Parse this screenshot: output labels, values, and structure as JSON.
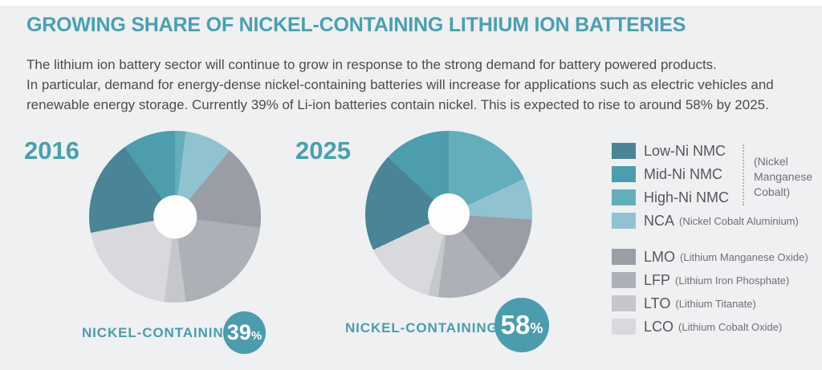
{
  "header": {
    "title": "GROWING SHARE OF NICKEL-CONTAINING LITHIUM ION BATTERIES",
    "intro": "The lithium ion battery sector will continue to grow in response to the strong demand for battery powered products.\nIn particular, demand for energy-dense nickel-containing batteries will increase for applications such as electric vehicles and\nrenewable energy storage. Currently 39% of Li-ion batteries contain nickel. This is expected to rise to around 58% by 2025."
  },
  "colors": {
    "accent": "#4aa0b0",
    "badge": "#4b9cac",
    "background": "#eff0f1",
    "hole": "#fdfdfd",
    "low_ni": "#4a8496",
    "mid_ni": "#4e9dac",
    "high_ni": "#64aebb",
    "nca": "#90c3cf",
    "lmo": "#9b9da6",
    "lfp": "#aeb0b7",
    "lto": "#c6c7cb",
    "lco": "#d8d9dc"
  },
  "chart_data": [
    {
      "type": "pie",
      "title": "2016",
      "donut": true,
      "hole_ratio": 0.25,
      "clockwise_from_top": true,
      "segments": [
        {
          "label": "High-Ni NMC",
          "value": 2,
          "color_key": "high_ni"
        },
        {
          "label": "NCA",
          "value": 9,
          "color_key": "nca"
        },
        {
          "label": "LMO",
          "value": 16,
          "color_key": "lmo"
        },
        {
          "label": "LFP",
          "value": 21,
          "color_key": "lfp"
        },
        {
          "label": "LTO",
          "value": 4,
          "color_key": "lto"
        },
        {
          "label": "LCO",
          "value": 20,
          "color_key": "lco"
        },
        {
          "label": "Low-Ni NMC",
          "value": 18,
          "color_key": "low_ni"
        },
        {
          "label": "Mid-Ni NMC",
          "value": 10,
          "color_key": "mid_ni"
        }
      ],
      "callout": {
        "label": "NICKEL-CONTAINING",
        "value": "39",
        "unit": "%"
      }
    },
    {
      "type": "pie",
      "title": "2025",
      "donut": true,
      "hole_ratio": 0.25,
      "clockwise_from_top": true,
      "segments": [
        {
          "label": "High-Ni NMC",
          "value": 18,
          "color_key": "high_ni"
        },
        {
          "label": "NCA",
          "value": 8,
          "color_key": "nca"
        },
        {
          "label": "LMO",
          "value": 13,
          "color_key": "lmo"
        },
        {
          "label": "LFP",
          "value": 13,
          "color_key": "lfp"
        },
        {
          "label": "LTO",
          "value": 2,
          "color_key": "lto"
        },
        {
          "label": "LCO",
          "value": 14,
          "color_key": "lco"
        },
        {
          "label": "Low-Ni NMC",
          "value": 19,
          "color_key": "low_ni"
        },
        {
          "label": "Mid-Ni NMC",
          "value": 13,
          "color_key": "mid_ni"
        }
      ],
      "callout": {
        "label": "NICKEL-CONTAINING",
        "value": "58",
        "unit": "%"
      }
    }
  ],
  "legend": {
    "nickel_items": [
      {
        "key": "low_ni",
        "label": "Low-Ni NMC",
        "detail": ""
      },
      {
        "key": "mid_ni",
        "label": "Mid-Ni NMC",
        "detail": ""
      },
      {
        "key": "high_ni",
        "label": "High-Ni NMC",
        "detail": ""
      },
      {
        "key": "nca",
        "label": "NCA",
        "detail": "(Nickel Cobalt Aluminium)"
      }
    ],
    "nmc_note": "(Nickel\nManganese\nCobalt)",
    "other_items": [
      {
        "key": "lmo",
        "label": "LMO",
        "detail": "(Lithium Manganese Oxide)"
      },
      {
        "key": "lfp",
        "label": "LFP",
        "detail": "(Lithium Iron Phosphate)"
      },
      {
        "key": "lto",
        "label": "LTO",
        "detail": "(Lithium Titanate)"
      },
      {
        "key": "lco",
        "label": "LCO",
        "detail": "(Lithium Cobalt Oxide)"
      }
    ]
  }
}
